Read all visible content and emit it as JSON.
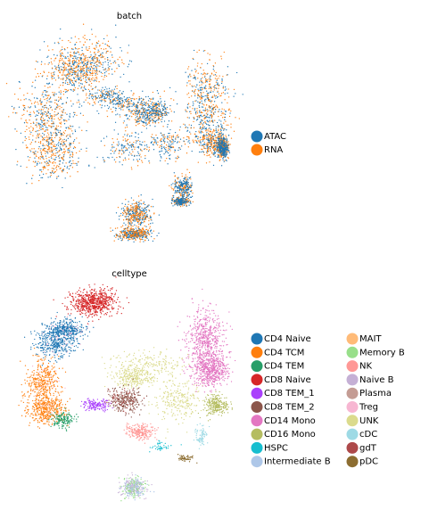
{
  "chart_data": [
    {
      "type": "scatter",
      "title": "batch",
      "xlabel": "",
      "ylabel": "",
      "grid": false,
      "legend_position": "right",
      "series": [
        {
          "name": "ATAC",
          "color": "#1f77b4"
        },
        {
          "name": "RNA",
          "color": "#ff7f0e"
        }
      ]
    },
    {
      "type": "scatter",
      "title": "celltype",
      "xlabel": "",
      "ylabel": "",
      "grid": false,
      "legend_position": "right",
      "series": [
        {
          "name": "CD4 Naive",
          "color": "#1f77b4"
        },
        {
          "name": "CD4 TCM",
          "color": "#ff7f0e"
        },
        {
          "name": "CD4 TEM",
          "color": "#279e68"
        },
        {
          "name": "CD8 Naive",
          "color": "#d62728"
        },
        {
          "name": "CD8 TEM_1",
          "color": "#aa40fc"
        },
        {
          "name": "CD8 TEM_2",
          "color": "#8c564b"
        },
        {
          "name": "CD14 Mono",
          "color": "#e377c2"
        },
        {
          "name": "CD16 Mono",
          "color": "#b5bd61"
        },
        {
          "name": "HSPC",
          "color": "#17becf"
        },
        {
          "name": "Intermediate B",
          "color": "#aec7e8"
        },
        {
          "name": "MAIT",
          "color": "#ffbb78"
        },
        {
          "name": "Memory B",
          "color": "#98df8a"
        },
        {
          "name": "NK",
          "color": "#ff9896"
        },
        {
          "name": "Naive B",
          "color": "#c5b0d5"
        },
        {
          "name": "Plasma",
          "color": "#c49c94"
        },
        {
          "name": "Treg",
          "color": "#f7b6d2"
        },
        {
          "name": "UNK",
          "color": "#dbdb8d"
        },
        {
          "name": "cDC",
          "color": "#9edae5"
        },
        {
          "name": "gdT",
          "color": "#ad494a"
        },
        {
          "name": "pDC",
          "color": "#8c6d31"
        }
      ]
    }
  ]
}
